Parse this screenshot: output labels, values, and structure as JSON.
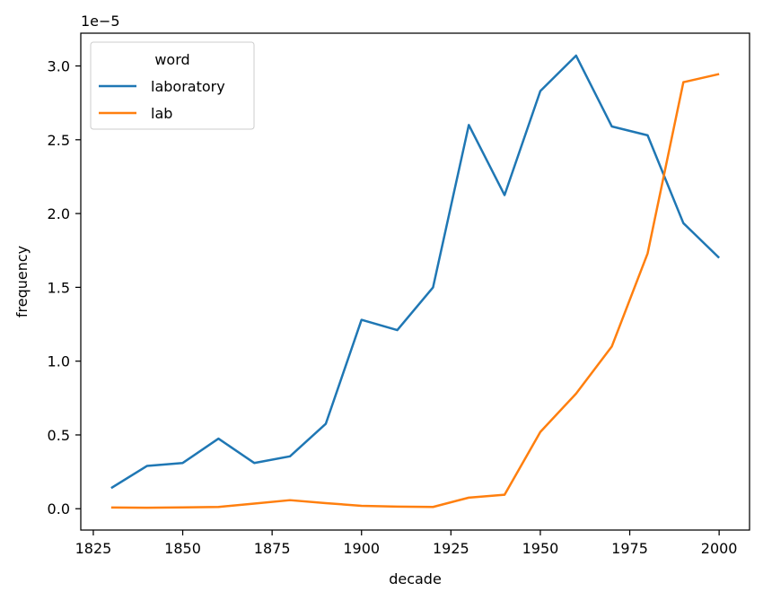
{
  "chart_data": {
    "type": "line",
    "x": [
      1830,
      1840,
      1850,
      1860,
      1870,
      1880,
      1890,
      1900,
      1910,
      1920,
      1930,
      1940,
      1950,
      1960,
      1970,
      1980,
      1990,
      2000
    ],
    "series": [
      {
        "name": "laboratory",
        "color": "#1f77b4",
        "values": [
          1.4e-06,
          2.9e-06,
          3.1e-06,
          4.75e-06,
          3.1e-06,
          3.55e-06,
          5.75e-06,
          1.28e-05,
          1.21e-05,
          1.5e-05,
          2.6e-05,
          2.125e-05,
          2.83e-05,
          3.07e-05,
          2.59e-05,
          2.53e-05,
          1.935e-05,
          1.7e-05
        ]
      },
      {
        "name": "lab",
        "color": "#ff7f0e",
        "values": [
          8e-08,
          7e-08,
          9e-08,
          1.2e-07,
          3.5e-07,
          5.8e-07,
          3.8e-07,
          2e-07,
          1.4e-07,
          1.2e-07,
          7.5e-07,
          9.5e-07,
          5.2e-06,
          7.8e-06,
          1.1e-05,
          1.73e-05,
          2.89e-05,
          2.945e-05
        ]
      }
    ],
    "xlabel": "decade",
    "ylabel": "frequency",
    "offset_label": "1e−5",
    "xlim": [
      1821.5,
      2008.5
    ],
    "ylim": [
      -1.444e-06,
      3.222e-05
    ],
    "xticks": [
      1825,
      1850,
      1875,
      1900,
      1925,
      1950,
      1975,
      2000
    ],
    "xtick_labels": [
      "1825",
      "1850",
      "1875",
      "1900",
      "1925",
      "1950",
      "1975",
      "2000"
    ],
    "yticks": [
      0,
      5e-06,
      1e-05,
      1.5e-05,
      2e-05,
      2.5e-05,
      3e-05
    ],
    "ytick_labels": [
      "0.0",
      "0.5",
      "1.0",
      "1.5",
      "2.0",
      "2.5",
      "3.0"
    ],
    "legend": {
      "title": "word",
      "placement": "top-left",
      "entries": [
        "laboratory",
        "lab"
      ]
    },
    "grid": false
  }
}
